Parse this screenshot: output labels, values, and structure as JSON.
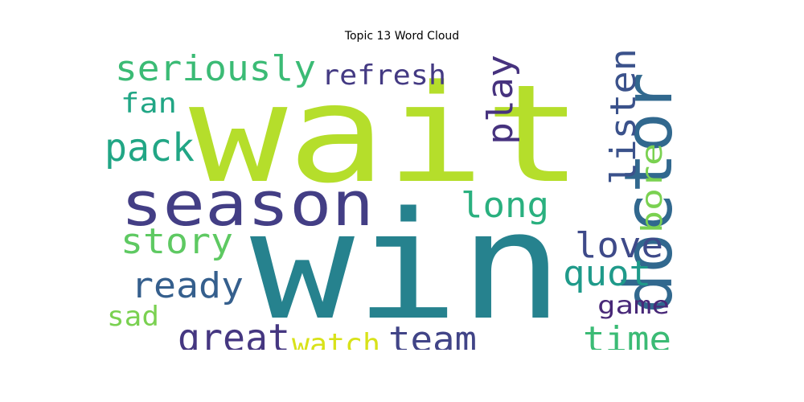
{
  "chart_data": {
    "type": "wordcloud",
    "title": "Topic 13 Word Cloud",
    "background": "#ffffff",
    "words": [
      {
        "text": "wait",
        "color": "#b5de2b"
      },
      {
        "text": "win",
        "color": "#26828e"
      },
      {
        "text": "season",
        "color": "#433e85"
      },
      {
        "text": "doctor",
        "color": "#31688e"
      },
      {
        "text": "seriously",
        "color": "#3bbb75"
      },
      {
        "text": "refresh",
        "color": "#443a83"
      },
      {
        "text": "play",
        "color": "#46327e"
      },
      {
        "text": "listen",
        "color": "#3b528b"
      },
      {
        "text": "fan",
        "color": "#21a685"
      },
      {
        "text": "pack",
        "color": "#21a685"
      },
      {
        "text": "bore",
        "color": "#7ad151"
      },
      {
        "text": "long",
        "color": "#2ab07f"
      },
      {
        "text": "story",
        "color": "#5ec962"
      },
      {
        "text": "love",
        "color": "#3e4a89"
      },
      {
        "text": "quot",
        "color": "#1f9a8a"
      },
      {
        "text": "ready",
        "color": "#355f8d"
      },
      {
        "text": "game",
        "color": "#482878"
      },
      {
        "text": "great",
        "color": "#453781"
      },
      {
        "text": "sad",
        "color": "#7ad151"
      },
      {
        "text": "watch",
        "color": "#d8e219"
      },
      {
        "text": "team",
        "color": "#414487"
      },
      {
        "text": "time",
        "color": "#3bbb75"
      }
    ]
  }
}
